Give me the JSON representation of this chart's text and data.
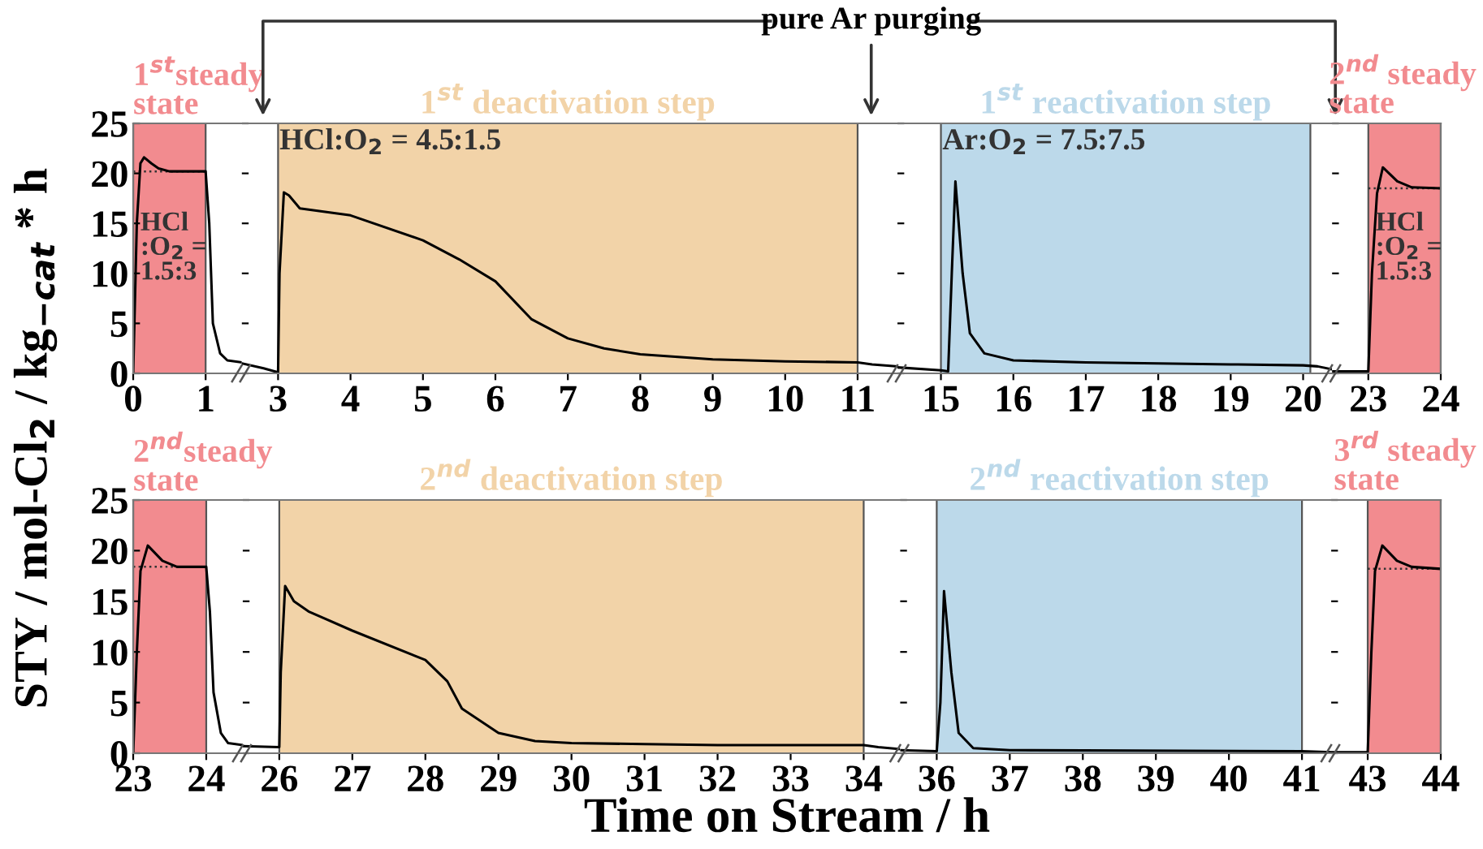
{
  "chart_data": [
    {
      "type": "line",
      "ylabel": "STY / mol-Cl$_{2}$ / kg$_{−cat}$ * h",
      "xlim": [
        0,
        1.5
      ],
      "xticks": [
        0,
        1
      ],
      "ylim": [
        0,
        25
      ],
      "yticks": [
        0,
        5,
        10,
        15,
        20,
        25
      ],
      "series": [
        {
          "color": "#000000",
          "x": [
            0,
            0.05,
            0.1,
            0.15,
            0.25,
            0.35,
            0.5,
            0.7,
            1.0,
            1.05,
            1.1,
            1.2,
            1.3,
            1.5
          ],
          "values": [
            0,
            15,
            21,
            21.6,
            21.0,
            20.5,
            20.2,
            20.2,
            20.2,
            15,
            5,
            2,
            1.3,
            1.1
          ]
        }
      ],
      "bands": [
        {
          "axis": "x",
          "from": 0,
          "to": 1,
          "label": "1$^{st}$steady\nstate",
          "color": "#f28b8f"
        }
      ],
      "ref_lines": [
        {
          "axis": "y",
          "value": 20.2,
          "line_style": "dotted"
        }
      ],
      "annotations": [
        "HCl\n:O$_{2}$ =\n1.5:3"
      ]
    },
    {
      "type": "line",
      "tick_labels": "x",
      "xlim": [
        2.5,
        11.55
      ],
      "xticks": [
        3,
        4,
        5,
        6,
        7,
        8,
        9,
        10,
        11
      ],
      "ylim": [
        0,
        25
      ],
      "yticks": [
        0,
        5,
        10,
        15,
        20,
        25
      ],
      "series": [
        {
          "color": "#000000",
          "x": [
            2.5,
            2.8,
            3.0,
            3.02,
            3.08,
            3.15,
            3.3,
            4,
            5,
            5.5,
            6,
            6.5,
            7,
            7.5,
            8,
            9,
            10,
            11,
            11.2,
            11.55
          ],
          "values": [
            1.0,
            0.5,
            0.1,
            10,
            18.1,
            17.8,
            16.5,
            15.8,
            13.3,
            11.4,
            9.2,
            5.4,
            3.5,
            2.5,
            1.9,
            1.4,
            1.2,
            1.1,
            0.9,
            0.7
          ]
        }
      ],
      "bands": [
        {
          "axis": "x",
          "from": 3,
          "to": 11,
          "label": "1$^{st}$ deactivation step",
          "color": "#f2d3a8"
        }
      ],
      "annotations": [
        "HCl:O$_{2}$ = 4.5:1.5",
        "pure Ar purging"
      ]
    },
    {
      "type": "line",
      "tick_labels": "x",
      "xlim": [
        14.4,
        20.4
      ],
      "xticks": [
        15,
        16,
        17,
        18,
        19,
        20
      ],
      "ylim": [
        0,
        25
      ],
      "yticks": [
        0,
        5,
        10,
        15,
        20,
        25
      ],
      "series": [
        {
          "color": "#000000",
          "x": [
            14.4,
            15.0,
            15.1,
            15.15,
            15.2,
            15.3,
            15.4,
            15.6,
            16,
            17,
            18,
            19,
            20,
            20.2,
            20.4
          ],
          "values": [
            0.6,
            0.3,
            0.2,
            10,
            19.2,
            10,
            4,
            2,
            1.3,
            1.1,
            1.0,
            0.9,
            0.8,
            0.7,
            0.4
          ]
        }
      ],
      "bands": [
        {
          "axis": "x",
          "from": 15,
          "to": 20.1,
          "label": "1$^{st}$ reactivation step",
          "color": "#bcd9ea"
        }
      ],
      "annotations": [
        "Ar:O$_{2}$ = 7.5:7.5"
      ]
    },
    {
      "type": "line",
      "tick_labels": "x",
      "xlim": [
        22.5,
        24
      ],
      "xticks": [
        23,
        24
      ],
      "ylim": [
        0,
        25
      ],
      "yticks": [
        0,
        5,
        10,
        15,
        20,
        25
      ],
      "series": [
        {
          "color": "#000000",
          "x": [
            22.5,
            23.0,
            23.05,
            23.12,
            23.2,
            23.4,
            23.6,
            24
          ],
          "values": [
            0.2,
            0.2,
            10,
            18,
            20.6,
            19.2,
            18.6,
            18.5
          ]
        }
      ],
      "bands": [
        {
          "axis": "x",
          "from": 23,
          "to": 24,
          "label": "2$^{nd}$ steady\nstate",
          "color": "#f28b8f"
        }
      ],
      "ref_lines": [
        {
          "axis": "y",
          "value": 18.5,
          "line_style": "dotted"
        }
      ],
      "annotations": [
        "HCl\n:O$_{2}$ =\n1.5:3"
      ]
    },
    {
      "type": "line",
      "xlim": [
        23,
        24.5
      ],
      "xticks": [
        23,
        24
      ],
      "ylim": [
        0,
        25
      ],
      "yticks": [
        0,
        5,
        10,
        15,
        20,
        25
      ],
      "series": [
        {
          "color": "#000000",
          "x": [
            23,
            23.05,
            23.1,
            23.2,
            23.4,
            23.6,
            24,
            24.05,
            24.1,
            24.2,
            24.3,
            24.5
          ],
          "values": [
            0,
            10,
            18,
            20.5,
            19.0,
            18.4,
            18.4,
            14,
            6,
            2,
            1,
            0.8
          ]
        }
      ],
      "bands": [
        {
          "axis": "x",
          "from": 23,
          "to": 24,
          "label": "2$^{nd}$steady\nstate",
          "color": "#f28b8f"
        }
      ],
      "ref_lines": [
        {
          "axis": "y",
          "value": 18.4,
          "line_style": "dotted"
        }
      ]
    },
    {
      "type": "line",
      "tick_labels": "x",
      "xlabel": "Time on Stream / h",
      "xlim": [
        25.5,
        34.5
      ],
      "xticks": [
        26,
        27,
        28,
        29,
        30,
        31,
        32,
        33,
        34
      ],
      "ylim": [
        0,
        25
      ],
      "yticks": [
        0,
        5,
        10,
        15,
        20,
        25
      ],
      "series": [
        {
          "color": "#000000",
          "x": [
            25.5,
            26,
            26.02,
            26.08,
            26.2,
            26.4,
            27,
            28,
            28.3,
            28.5,
            29,
            29.5,
            30,
            31,
            32,
            33,
            34,
            34.2,
            34.5
          ],
          "values": [
            0.7,
            0.6,
            8,
            16.5,
            15,
            14,
            12.1,
            9.2,
            7.1,
            4.4,
            2.0,
            1.2,
            1.0,
            0.9,
            0.8,
            0.8,
            0.8,
            0.6,
            0.4
          ]
        }
      ],
      "bands": [
        {
          "axis": "x",
          "from": 26,
          "to": 34,
          "label": "2$^{nd}$ deactivation step",
          "color": "#f2d3a8"
        }
      ]
    },
    {
      "type": "line",
      "tick_labels": "x",
      "xlim": [
        35.5,
        41.4
      ],
      "xticks": [
        36,
        37,
        38,
        39,
        40,
        41
      ],
      "ylim": [
        0,
        25
      ],
      "yticks": [
        0,
        5,
        10,
        15,
        20,
        25
      ],
      "series": [
        {
          "color": "#000000",
          "x": [
            35.5,
            36.0,
            36.05,
            36.1,
            36.2,
            36.3,
            36.5,
            37,
            41,
            41.4
          ],
          "values": [
            0.3,
            0.2,
            5,
            16,
            8,
            2,
            0.5,
            0.3,
            0.2,
            0.1
          ]
        }
      ],
      "bands": [
        {
          "axis": "x",
          "from": 36,
          "to": 41,
          "label": "2$^{nd}$ reactivation step",
          "color": "#bcd9ea"
        }
      ]
    },
    {
      "type": "line",
      "tick_labels": "x",
      "xlim": [
        42.5,
        44
      ],
      "xticks": [
        43,
        44
      ],
      "ylim": [
        0,
        25
      ],
      "yticks": [
        0,
        5,
        10,
        15,
        20,
        25
      ],
      "series": [
        {
          "color": "#000000",
          "x": [
            42.5,
            43.0,
            43.05,
            43.1,
            43.2,
            43.4,
            43.6,
            44
          ],
          "values": [
            0.1,
            0.1,
            10,
            18,
            20.5,
            19.0,
            18.4,
            18.2
          ]
        }
      ],
      "bands": [
        {
          "axis": "x",
          "from": 43,
          "to": 44,
          "label": "3$^{rd}$ steady\nstate",
          "color": "#f28b8f"
        }
      ],
      "ref_lines": [
        {
          "axis": "y",
          "value": 18.2,
          "line_style": "dotted"
        }
      ]
    }
  ]
}
